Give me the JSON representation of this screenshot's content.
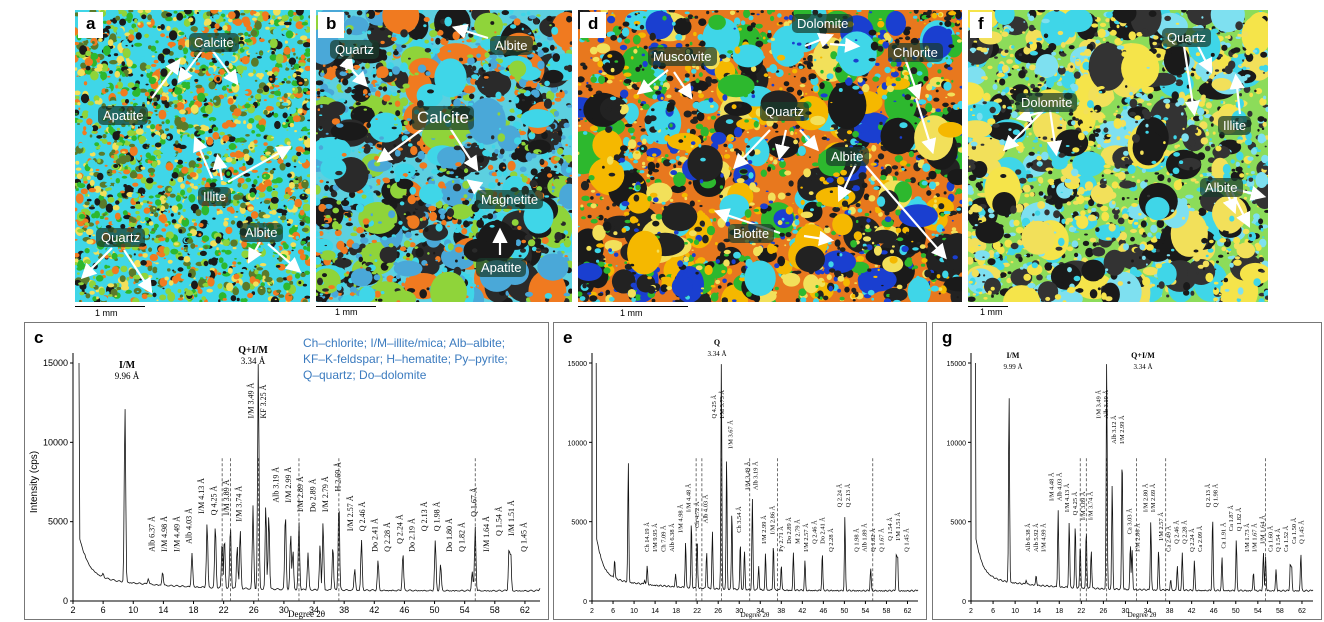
{
  "micro_panels": [
    {
      "id": "a",
      "scale": "1 mm",
      "labels": [
        "Calcite",
        "Apatite",
        "Illite",
        "Quartz",
        "Albite"
      ]
    },
    {
      "id": "b",
      "scale": "1 mm",
      "labels": [
        "Quartz",
        "Albite",
        "Calcite",
        "Magnetite",
        "Apatite"
      ]
    },
    {
      "id": "d",
      "scale": "1 mm",
      "labels": [
        "Dolomite",
        "Muscovite",
        "Chlorite",
        "Quartz",
        "Albite",
        "Biotite"
      ]
    },
    {
      "id": "f",
      "scale": "1 mm",
      "labels": [
        "Quartz",
        "Dolomite",
        "Illite",
        "Albite"
      ]
    }
  ],
  "xrd_panels": [
    {
      "id": "c",
      "ylabel": "Intensity (cps)",
      "xlabel": "Degree 2θ",
      "legend": [
        "Ch–chlorite;  I/M–illite/mica;  Alb–albite;",
        "KF–K-feldspar;  H–hematite;  Py–pyrite;",
        "Q–quartz;  Do–dolomite"
      ],
      "main_peaks": [
        {
          "t": "I/M",
          "s": "9.96 Å"
        },
        {
          "t": "Q+I/M",
          "s": "3.34 Å"
        }
      ]
    },
    {
      "id": "e",
      "ylabel": "",
      "xlabel": "Degree 2θ",
      "legend": [],
      "main_peaks": [
        {
          "t": "Q",
          "s": "3.34 Å"
        }
      ]
    },
    {
      "id": "g",
      "ylabel": "",
      "xlabel": "Degree 2θ",
      "legend": [],
      "main_peaks": [
        {
          "t": "I/M",
          "s": "9.99 Å"
        },
        {
          "t": "Q+I/M",
          "s": "3.34 Å"
        }
      ]
    }
  ],
  "chart_data": [
    {
      "type": "line",
      "panel": "c",
      "xlabel": "Degree 2θ",
      "ylabel": "Intensity (cps)",
      "x_ticks": [
        "2",
        "6",
        "10",
        "14",
        "18",
        "22",
        "26",
        "30",
        "34",
        "38",
        "42",
        "46",
        "50",
        "54",
        "58",
        "62"
      ],
      "y_ticks": [
        "0",
        "5000",
        "10000",
        "15000"
      ],
      "xlim": [
        2,
        64
      ],
      "ylim": [
        0,
        15000
      ],
      "series": [
        {
          "values": [
            [
              2.8,
              15000
            ],
            [
              3.5,
              3000
            ],
            [
              6,
              1700
            ],
            [
              8.9,
              12300
            ],
            [
              12,
              1400
            ],
            [
              13.9,
              1800
            ],
            [
              17.8,
              3000
            ],
            [
              19.8,
              4900
            ],
            [
              20.9,
              4800
            ],
            [
              21.8,
              3800
            ],
            [
              22.1,
              4000
            ],
            [
              22.9,
              4800
            ],
            [
              23.8,
              3500
            ],
            [
              24.2,
              4400
            ],
            [
              25.9,
              6000
            ],
            [
              26.6,
              15000
            ],
            [
              27.6,
              6000
            ],
            [
              28,
              5500
            ],
            [
              30.2,
              5600
            ],
            [
              30.9,
              4300
            ],
            [
              31.2,
              3200
            ],
            [
              32.0,
              5000
            ],
            [
              33.2,
              3000
            ],
            [
              34.8,
              3500
            ],
            [
              35.2,
              5000
            ],
            [
              36.5,
              3500
            ],
            [
              37.3,
              6300
            ],
            [
              39.4,
              2000
            ],
            [
              40.3,
              3800
            ],
            [
              42.5,
              2500
            ],
            [
              45.8,
              3000
            ],
            [
              50.1,
              3800
            ],
            [
              50.8,
              2300
            ],
            [
              55,
              1800
            ],
            [
              55.4,
              4700
            ],
            [
              59.9,
              3500
            ],
            [
              60.1,
              3200
            ],
            [
              64,
              800
            ]
          ]
        }
      ],
      "peak_labels": [
        "Alb 6.37 Å",
        "I/M 4.98 Å",
        "I/M 4.49 Å",
        "Alb 4.03 Å",
        "I/M 4.13 Å",
        "Q 4.25 Å",
        "I/M 3.89 Å",
        "I/M 3.74 Å",
        "I/M 3.49 Å",
        "KF 3.25 Å",
        "Alb 3.19 Å",
        "I/M 2.99 Å",
        "I/M 2.89 Å",
        "Do 2.89 Å",
        "I/M 2.79 Å",
        "H 2.69 Å",
        "I/M 2.57 Å",
        "Q 2.46 Å",
        "Do 2.41 Å",
        "Q 2.28 Å",
        "Q 2.24 Å",
        "Do 2.19 Å",
        "Q 2.13 Å",
        "Q 1.98 Å",
        "Do 1.80 Å",
        "Q 1.82 Å",
        "Q 1.67 Å",
        "I/M 1.64 Å",
        "Q 1.54 Å",
        "I/M 1.51 Å",
        "Q 1.45 Å"
      ]
    },
    {
      "type": "line",
      "panel": "e",
      "xlabel": "Degree 2θ",
      "ylabel": "",
      "x_ticks": [
        "2",
        "6",
        "10",
        "14",
        "18",
        "22",
        "26",
        "30",
        "34",
        "38",
        "42",
        "46",
        "50",
        "54",
        "58",
        "62"
      ],
      "y_ticks": [
        "0",
        "5000",
        "10000",
        "15000"
      ],
      "xlim": [
        2,
        64
      ],
      "ylim": [
        0,
        15000
      ],
      "series": [
        {
          "values": [
            [
              2.8,
              15000
            ],
            [
              3.5,
              3000
            ],
            [
              6,
              1500
            ],
            [
              6.3,
              2600
            ],
            [
              8.9,
              8800
            ],
            [
              12,
              1300
            ],
            [
              12.5,
              2200
            ],
            [
              17.9,
              1700
            ],
            [
              19.8,
              3700
            ],
            [
              20.9,
              5000
            ],
            [
              22,
              4000
            ],
            [
              23.8,
              3100
            ],
            [
              24.9,
              4300
            ],
            [
              26.6,
              15000
            ],
            [
              27.6,
              9000
            ],
            [
              28.6,
              5700
            ],
            [
              30.2,
              3700
            ],
            [
              31,
              3200
            ],
            [
              32.5,
              6400
            ],
            [
              33.7,
              2200
            ],
            [
              35,
              3000
            ],
            [
              36.5,
              3600
            ],
            [
              38,
              2300
            ],
            [
              40.3,
              3000
            ],
            [
              42.5,
              2500
            ],
            [
              45.8,
              3000
            ],
            [
              50.1,
              5300
            ],
            [
              55,
              2000
            ],
            [
              59.9,
              3200
            ],
            [
              60.1,
              3000
            ],
            [
              64,
              700
            ]
          ]
        }
      ],
      "peak_labels": [
        "Ch 14.19 Å",
        "I/M 9.95 Å",
        "Ch 7.09 Å",
        "Alb 6.38 Å",
        "I/M 4.98 Å",
        "I/M 4.48 Å",
        "Ch 4.72 Å",
        "Alb 4.03 Å",
        "Q 4.25 Å",
        "I/M 3.73 Å",
        "I/M 3.67 Å",
        "Ch 3.54 Å",
        "I/M 3.49 Å",
        "Alb 3.19 Å",
        "I/M 2.99 Å",
        "I/M 2.86 Å",
        "Py 2.71 Å",
        "Do 2.89 Å",
        "M 2.79 Å",
        "I/M 2.57 Å",
        "Q 2.46 Å",
        "Do 2.41 Å",
        "Q 2.28 Å",
        "Q 2.24 Å",
        "Q 2.13 Å",
        "Q 1.98 Å",
        "Alb 1.89 Å",
        "Q 1.82 Å",
        "Q 1.67 Å",
        "Q 1.54 Å",
        "I/M 1.51 Å",
        "Q 1.45 Å"
      ]
    },
    {
      "type": "line",
      "panel": "g",
      "xlabel": "Degree 2θ",
      "ylabel": "",
      "x_ticks": [
        "2",
        "6",
        "10",
        "14",
        "18",
        "22",
        "26",
        "30",
        "34",
        "38",
        "42",
        "46",
        "50",
        "54",
        "58",
        "62"
      ],
      "y_ticks": [
        "0",
        "5000",
        "10000",
        "15000"
      ],
      "xlim": [
        2,
        64
      ],
      "ylim": [
        0,
        15000
      ],
      "series": [
        {
          "values": [
            [
              2.8,
              15000
            ],
            [
              3.5,
              3000
            ],
            [
              6,
              1500
            ],
            [
              8.9,
              13000
            ],
            [
              12,
              1300
            ],
            [
              13.8,
              1600
            ],
            [
              17.8,
              5700
            ],
            [
              19.8,
              5000
            ],
            [
              20.9,
              4800
            ],
            [
              21.8,
              3600
            ],
            [
              22.9,
              4500
            ],
            [
              23.8,
              3200
            ],
            [
              26.6,
              15000
            ],
            [
              27.6,
              7400
            ],
            [
              29.4,
              9300
            ],
            [
              30.9,
              3600
            ],
            [
              31.2,
              3300
            ],
            [
              34.6,
              5000
            ],
            [
              36,
              3200
            ],
            [
              38.2,
              1300
            ],
            [
              39.4,
              2200
            ],
            [
              40.3,
              3000
            ],
            [
              42.5,
              2500
            ],
            [
              45.8,
              5300
            ],
            [
              47.5,
              2700
            ],
            [
              50.1,
              3800
            ],
            [
              53.2,
              1800
            ],
            [
              55,
              3000
            ],
            [
              55.4,
              2800
            ],
            [
              57.3,
              2000
            ],
            [
              59.9,
              2500
            ],
            [
              60.1,
              2300
            ],
            [
              61.8,
              3000
            ],
            [
              64,
              700
            ]
          ]
        }
      ],
      "peak_labels": [
        "Alb 6.38 Å",
        "Alb 5.92 Å",
        "I/M 4.99 Å",
        "I/M 4.48 Å",
        "Alb 4.03 Å",
        "I/M 4.13 Å",
        "Q 4.25 Å",
        "I/M 3.89 Å",
        "I/M 3.74 Å",
        "I/M 3.49 Å",
        "Alb 3.19 Å",
        "Alb 3.12 Å",
        "I/M 2.99 Å",
        "Ca 3.03 Å",
        "I/M 2.86 Å",
        "I/M 2.80 Å",
        "I/M 2.69 Å",
        "I/M 2.57 Å",
        "Ca 2.49 Å",
        "Q 2.46 Å",
        "Q 2.28 Å",
        "Q 2.24 Å",
        "Ca 2.09 Å",
        "Q 2.13 Å",
        "Q 1.98 Å",
        "Ca 1.91 Å",
        "Ca 1.87 Å",
        "Q 1.82 Å",
        "I/M 1.73 Å",
        "I/M 1.67 Å",
        "I/M 1.64 Å",
        "Ca 1.60 Å",
        "Q 1.54 Å",
        "Ca 1.52 Å",
        "Ca 1.50 Å",
        "Q 1.45 Å"
      ]
    }
  ],
  "colors": {
    "quartz": "#3fd6e8",
    "calcite": "#8fd43a",
    "albite": "#f2e05a",
    "orange": "#f07a20",
    "green": "#2db82e",
    "blue": "#1a3fd0",
    "label_blue": "#3b7bbf"
  }
}
